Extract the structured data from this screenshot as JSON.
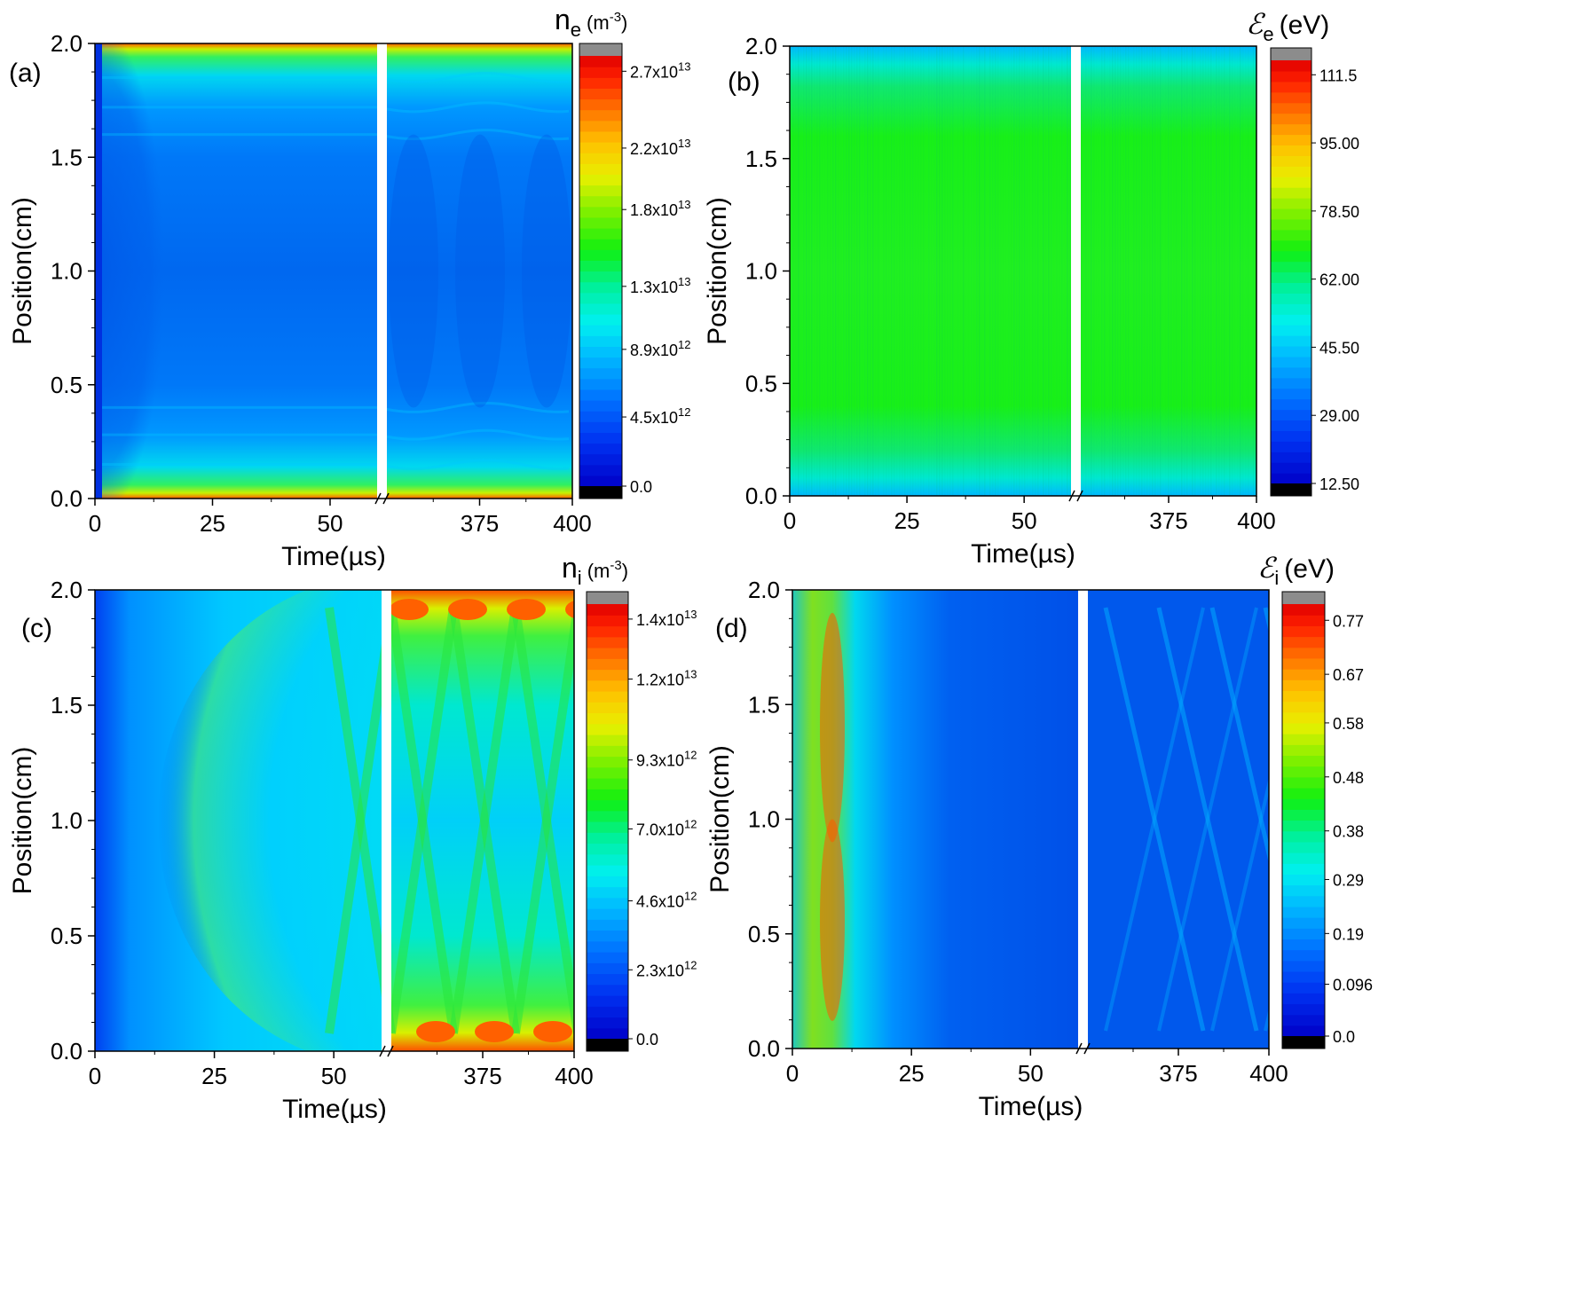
{
  "chart_data": [
    {
      "type": "heatmap",
      "panel_label": "(a)",
      "xlabel": "Time(µs)",
      "ylabel": "Position(cm)",
      "x_ticks_left": [
        "0",
        "25",
        "50"
      ],
      "x_ticks_right": [
        "375",
        "400"
      ],
      "x_left_range": [
        0,
        60
      ],
      "x_right_range": [
        350,
        400
      ],
      "y_ticks": [
        "0.0",
        "0.5",
        "1.0",
        "1.5",
        "2.0"
      ],
      "ylim": [
        0.0,
        2.0
      ],
      "axis_break": true,
      "colorbar": {
        "title_symbol": "n",
        "title_sub": "e",
        "title_unit": "(m",
        "title_unit_sup": "-3",
        "title_unit_close": ")",
        "tick_labels": [
          {
            "label": "0.0",
            "value": 0
          },
          {
            "label": "4.5x10",
            "sup": "12",
            "value": 4500000000000.0
          },
          {
            "label": "8.9x10",
            "sup": "12",
            "value": 8900000000000.0
          },
          {
            "label": "1.3x10",
            "sup": "13",
            "value": 13000000000000.0
          },
          {
            "label": "1.8x10",
            "sup": "13",
            "value": 18000000000000.0
          },
          {
            "label": "2.2x10",
            "sup": "13",
            "value": 22000000000000.0
          },
          {
            "label": "2.7x10",
            "sup": "13",
            "value": 27000000000000.0
          }
        ],
        "min": 0,
        "max": 28000000000000.0
      },
      "description_values": {
        "center_level": 0.2,
        "edge_peak_level": 0.85
      }
    },
    {
      "type": "heatmap",
      "panel_label": "(b)",
      "xlabel": "Time(µs)",
      "ylabel": "Position(cm)",
      "x_ticks_left": [
        "0",
        "25",
        "50"
      ],
      "x_ticks_right": [
        "375",
        "400"
      ],
      "x_left_range": [
        0,
        60
      ],
      "x_right_range": [
        350,
        400
      ],
      "y_ticks": [
        "0.0",
        "0.5",
        "1.0",
        "1.5",
        "2.0"
      ],
      "ylim": [
        0.0,
        2.0
      ],
      "axis_break": true,
      "colorbar": {
        "title_symbol": "ℰ",
        "title_sub": "e",
        "title_unit": "(eV)",
        "title_unit_sup": "",
        "title_unit_close": "",
        "tick_labels": [
          {
            "label": "12.50",
            "value": 12.5
          },
          {
            "label": "29.00",
            "value": 29.0
          },
          {
            "label": "45.50",
            "value": 45.5
          },
          {
            "label": "62.00",
            "value": 62.0
          },
          {
            "label": "78.50",
            "value": 78.5
          },
          {
            "label": "95.00",
            "value": 95.0
          },
          {
            "label": "111.5",
            "value": 111.5
          }
        ],
        "min": 12.5,
        "max": 115
      },
      "description_values": {
        "center_level": 0.5,
        "edge_level": 0.3
      }
    },
    {
      "type": "heatmap",
      "panel_label": "(c)",
      "xlabel": "Time(µs)",
      "ylabel": "Position(cm)",
      "x_ticks_left": [
        "0",
        "25",
        "50"
      ],
      "x_ticks_right": [
        "375",
        "400"
      ],
      "x_left_range": [
        0,
        60
      ],
      "x_right_range": [
        350,
        400
      ],
      "y_ticks": [
        "0.0",
        "0.5",
        "1.0",
        "1.5",
        "2.0"
      ],
      "ylim": [
        0.0,
        2.0
      ],
      "axis_break": true,
      "colorbar": {
        "title_symbol": "n",
        "title_sub": "i",
        "title_unit": "(m",
        "title_unit_sup": "-3",
        "title_unit_close": ")",
        "tick_labels": [
          {
            "label": "0.0",
            "value": 0
          },
          {
            "label": "2.3x10",
            "sup": "12",
            "value": 2300000000000.0
          },
          {
            "label": "4.6x10",
            "sup": "12",
            "value": 4600000000000.0
          },
          {
            "label": "7.0x10",
            "sup": "12",
            "value": 7000000000000.0
          },
          {
            "label": "9.3x10",
            "sup": "12",
            "value": 9300000000000.0
          },
          {
            "label": "1.2x10",
            "sup": "13",
            "value": 12000000000000.0
          },
          {
            "label": "1.4x10",
            "sup": "13",
            "value": 14000000000000.0
          }
        ],
        "min": 0,
        "max": 14500000000000.0
      },
      "description_values": {
        "late_center_level": 0.4,
        "late_edge_peak_level": 0.9
      }
    },
    {
      "type": "heatmap",
      "panel_label": "(d)",
      "xlabel": "Time(µs)",
      "ylabel": "Position(cm)",
      "x_ticks_left": [
        "0",
        "25",
        "50"
      ],
      "x_ticks_right": [
        "375",
        "400"
      ],
      "x_left_range": [
        0,
        60
      ],
      "x_right_range": [
        350,
        400
      ],
      "y_ticks": [
        "0.0",
        "0.5",
        "1.0",
        "1.5",
        "2.0"
      ],
      "ylim": [
        0.0,
        2.0
      ],
      "axis_break": true,
      "colorbar": {
        "title_symbol": "ℰ",
        "title_sub": "i",
        "title_unit": "(eV)",
        "title_unit_sup": "",
        "title_unit_close": "",
        "tick_labels": [
          {
            "label": "0.0",
            "value": 0
          },
          {
            "label": "0.096",
            "value": 0.096
          },
          {
            "label": "0.19",
            "value": 0.19
          },
          {
            "label": "0.29",
            "value": 0.29
          },
          {
            "label": "0.38",
            "value": 0.38
          },
          {
            "label": "0.48",
            "value": 0.48
          },
          {
            "label": "0.58",
            "value": 0.58
          },
          {
            "label": "0.67",
            "value": 0.67
          },
          {
            "label": "0.77",
            "value": 0.77
          }
        ],
        "min": 0,
        "max": 0.8
      },
      "description_values": {
        "early_peak_time_us": 8,
        "late_background_level": 0.12
      }
    }
  ]
}
